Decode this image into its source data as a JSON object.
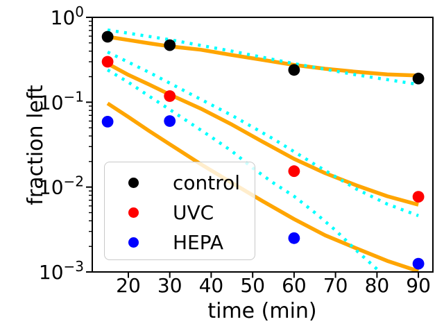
{
  "chart_data": {
    "type": "scatter",
    "title": "",
    "xlabel": "time (min)",
    "ylabel": "fraction left",
    "y_scale": "log",
    "xlim": [
      11.3,
      93.5
    ],
    "ylim": [
      0.001,
      1.0
    ],
    "grid": false,
    "x_ticks": [
      20,
      30,
      40,
      50,
      60,
      70,
      80,
      90
    ],
    "y_ticks": [
      "10^0",
      "10^-1",
      "10^-2",
      "10^-3"
    ],
    "legend_position": "inside lower-left",
    "marker_radius": 8.4,
    "fit_color": "#ffa500",
    "model_color": "#00ffff",
    "series": [
      {
        "name": "control",
        "color": "#000000",
        "marker": "circle",
        "x": [
          15,
          30,
          60,
          90
        ],
        "y": [
          0.59,
          0.47,
          0.24,
          0.19
        ]
      },
      {
        "name": "UVC",
        "color": "#ff0000",
        "marker": "circle",
        "x": [
          15,
          30,
          60,
          90
        ],
        "y": [
          0.3,
          0.118,
          0.0154,
          0.0077
        ]
      },
      {
        "name": "HEPA",
        "color": "#0000ff",
        "marker": "circle",
        "x": [
          15,
          30,
          60,
          90
        ],
        "y": [
          0.059,
          0.06,
          0.0025,
          0.00125
        ]
      }
    ],
    "fit_curves": [
      {
        "name": "control-fit",
        "style": "solid",
        "t": [
          15,
          20,
          25,
          30,
          37.5,
          45,
          52.5,
          60,
          67.5,
          75,
          82.5,
          90
        ],
        "v": [
          0.59,
          0.54,
          0.495,
          0.455,
          0.415,
          0.36,
          0.315,
          0.275,
          0.248,
          0.228,
          0.213,
          0.206
        ]
      },
      {
        "name": "uvc-fit",
        "style": "solid",
        "t": [
          15,
          20,
          25,
          30,
          37.5,
          45,
          52.5,
          60,
          67.5,
          75,
          82.5,
          90
        ],
        "v": [
          0.285,
          0.21,
          0.162,
          0.123,
          0.084,
          0.0545,
          0.034,
          0.0215,
          0.0146,
          0.0105,
          0.0078,
          0.0062
        ]
      },
      {
        "name": "hepa-fit",
        "style": "solid",
        "t": [
          15,
          20,
          25,
          30,
          37.5,
          45,
          52.5,
          60,
          67.5,
          75,
          82.5,
          90
        ],
        "v": [
          0.097,
          0.067,
          0.046,
          0.032,
          0.0186,
          0.0112,
          0.0068,
          0.0042,
          0.0027,
          0.0019,
          0.00135,
          0.00102
        ]
      }
    ],
    "model_curves": [
      {
        "name": "control-model",
        "style": "dotted",
        "t": [
          15,
          30,
          45,
          60,
          75,
          90
        ],
        "v": [
          0.71,
          0.545,
          0.4,
          0.285,
          0.21,
          0.162
        ]
      },
      {
        "name": "uvc-model",
        "style": "dotted",
        "t": [
          15,
          25,
          35,
          45,
          55,
          65,
          75,
          82.5,
          90
        ],
        "v": [
          0.39,
          0.225,
          0.125,
          0.07,
          0.037,
          0.0185,
          0.0095,
          0.0063,
          0.0046
        ]
      },
      {
        "name": "hepa-model",
        "style": "dotted",
        "t": [
          15,
          20,
          25,
          30,
          35,
          40,
          45,
          50,
          55,
          60,
          65,
          70,
          75,
          80,
          82.5
        ],
        "v": [
          0.24,
          0.172,
          0.118,
          0.082,
          0.0565,
          0.039,
          0.0265,
          0.0168,
          0.0112,
          0.0078,
          0.005,
          0.0031,
          0.0018,
          0.00108,
          0.00088
        ]
      }
    ]
  }
}
